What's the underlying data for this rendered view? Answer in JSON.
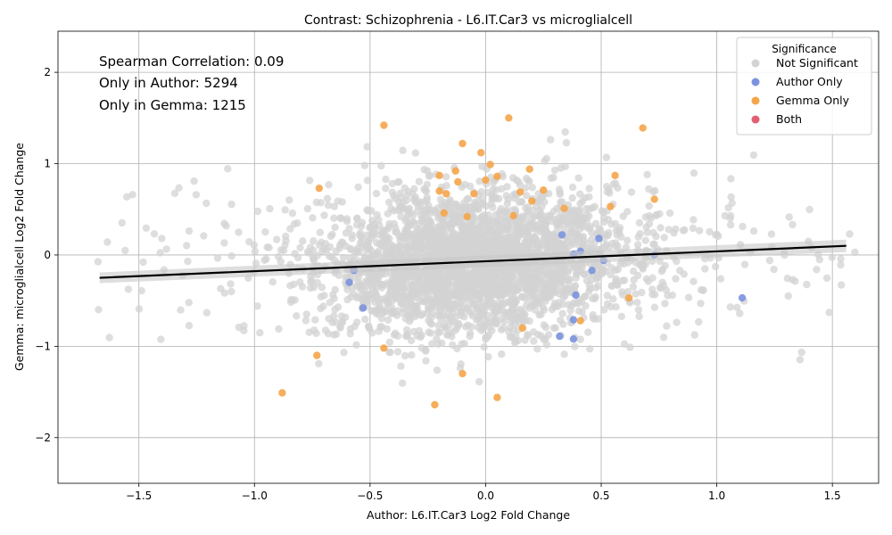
{
  "chart_data": {
    "type": "scatter",
    "title": "Contrast: Schizophrenia - L6.IT.Car3 vs microglialcell",
    "xlabel": "Author: L6.IT.Car3 Log2 Fold Change",
    "ylabel": "Gemma: microglialcell Log2 Fold Change",
    "xlim": [
      -1.85,
      1.7
    ],
    "ylim": [
      -2.5,
      2.45
    ],
    "xticks": [
      -1.5,
      -1.0,
      -0.5,
      0.0,
      0.5,
      1.0,
      1.5
    ],
    "xtick_labels": [
      "−1.5",
      "−1.0",
      "−0.5",
      "0.0",
      "0.5",
      "1.0",
      "1.5"
    ],
    "yticks": [
      -2,
      -1,
      0,
      1,
      2
    ],
    "ytick_labels": [
      "−2",
      "−1",
      "0",
      "1",
      "2"
    ],
    "grid": true,
    "legend": {
      "title": "Significance",
      "placement": "top-right",
      "entries": [
        {
          "name": "Not Significant",
          "color": "#d3d3d3"
        },
        {
          "name": "Author Only",
          "color": "#7b93de"
        },
        {
          "name": "Gemma Only",
          "color": "#f5a54a"
        },
        {
          "name": "Both",
          "color": "#e06070"
        }
      ]
    },
    "annotations": [
      "Spearman Correlation: 0.09",
      "Only in Author: 5294",
      "Only in Gemma: 1215"
    ],
    "regression_line": {
      "x": [
        -1.67,
        1.56
      ],
      "y": [
        -0.25,
        0.1
      ],
      "color": "#000000"
    },
    "series": [
      {
        "name": "Author Only",
        "color": "#7b93de",
        "points": [
          [
            0.33,
            0.22
          ],
          [
            0.49,
            0.18
          ],
          [
            0.51,
            -0.06
          ],
          [
            0.46,
            -0.17
          ],
          [
            0.38,
            0.01
          ],
          [
            0.39,
            -0.44
          ],
          [
            0.38,
            -0.71
          ],
          [
            0.32,
            -0.89
          ],
          [
            0.38,
            -0.92
          ],
          [
            1.11,
            -0.47
          ],
          [
            0.73,
            0.0
          ],
          [
            -0.53,
            -0.58
          ],
          [
            -0.59,
            -0.3
          ],
          [
            -0.57,
            -0.17
          ],
          [
            0.41,
            0.04
          ]
        ]
      },
      {
        "name": "Gemma Only",
        "color": "#f5a54a",
        "points": [
          [
            -0.44,
            1.42
          ],
          [
            0.1,
            1.5
          ],
          [
            0.68,
            1.39
          ],
          [
            -0.1,
            1.22
          ],
          [
            -0.02,
            1.12
          ],
          [
            0.02,
            0.99
          ],
          [
            0.19,
            0.94
          ],
          [
            0.05,
            0.86
          ],
          [
            0.56,
            0.87
          ],
          [
            -0.72,
            0.73
          ],
          [
            -0.13,
            0.92
          ],
          [
            -0.12,
            0.8
          ],
          [
            -0.2,
            0.87
          ],
          [
            -0.2,
            0.7
          ],
          [
            -0.17,
            0.67
          ],
          [
            -0.05,
            0.67
          ],
          [
            0.15,
            0.69
          ],
          [
            0.25,
            0.71
          ],
          [
            0.2,
            0.59
          ],
          [
            0.73,
            0.61
          ],
          [
            0.54,
            0.53
          ],
          [
            0.34,
            0.51
          ],
          [
            -0.18,
            0.46
          ],
          [
            0.0,
            0.82
          ],
          [
            -0.88,
            -1.51
          ],
          [
            -0.73,
            -1.1
          ],
          [
            -0.44,
            -1.02
          ],
          [
            -0.1,
            -1.3
          ],
          [
            -0.22,
            -1.64
          ],
          [
            0.05,
            -1.56
          ],
          [
            0.41,
            -0.72
          ],
          [
            0.62,
            -0.47
          ],
          [
            0.16,
            -0.8
          ],
          [
            0.12,
            0.43
          ],
          [
            -0.08,
            0.42
          ]
        ]
      },
      {
        "name": "Both",
        "color": "#e06070",
        "points": []
      }
    ]
  }
}
